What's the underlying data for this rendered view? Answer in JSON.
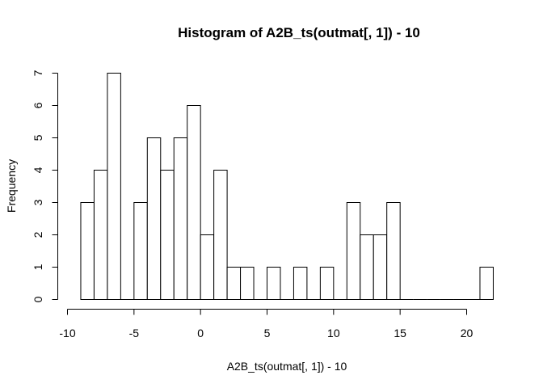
{
  "chart_data": {
    "type": "bar",
    "title": "Histogram of A2B_ts(outmat[, 1]) - 10",
    "xlabel": "A2B_ts(outmat[, 1]) - 10",
    "ylabel": "Frequency",
    "bin_width": 1,
    "bins": [
      {
        "x0": -9,
        "x1": -8,
        "count": 3
      },
      {
        "x0": -8,
        "x1": -7,
        "count": 4
      },
      {
        "x0": -7,
        "x1": -6,
        "count": 7
      },
      {
        "x0": -6,
        "x1": -5,
        "count": 0
      },
      {
        "x0": -5,
        "x1": -4,
        "count": 3
      },
      {
        "x0": -4,
        "x1": -3,
        "count": 5
      },
      {
        "x0": -3,
        "x1": -2,
        "count": 4
      },
      {
        "x0": -2,
        "x1": -1,
        "count": 5
      },
      {
        "x0": -1,
        "x1": 0,
        "count": 6
      },
      {
        "x0": 0,
        "x1": 1,
        "count": 2
      },
      {
        "x0": 1,
        "x1": 2,
        "count": 4
      },
      {
        "x0": 2,
        "x1": 3,
        "count": 1
      },
      {
        "x0": 3,
        "x1": 4,
        "count": 1
      },
      {
        "x0": 4,
        "x1": 5,
        "count": 0
      },
      {
        "x0": 5,
        "x1": 6,
        "count": 1
      },
      {
        "x0": 6,
        "x1": 7,
        "count": 0
      },
      {
        "x0": 7,
        "x1": 8,
        "count": 1
      },
      {
        "x0": 8,
        "x1": 9,
        "count": 0
      },
      {
        "x0": 9,
        "x1": 10,
        "count": 1
      },
      {
        "x0": 10,
        "x1": 11,
        "count": 0
      },
      {
        "x0": 11,
        "x1": 12,
        "count": 3
      },
      {
        "x0": 12,
        "x1": 13,
        "count": 2
      },
      {
        "x0": 13,
        "x1": 14,
        "count": 2
      },
      {
        "x0": 14,
        "x1": 15,
        "count": 3
      },
      {
        "x0": 15,
        "x1": 16,
        "count": 0
      },
      {
        "x0": 16,
        "x1": 17,
        "count": 0
      },
      {
        "x0": 17,
        "x1": 18,
        "count": 0
      },
      {
        "x0": 18,
        "x1": 19,
        "count": 0
      },
      {
        "x0": 19,
        "x1": 20,
        "count": 0
      },
      {
        "x0": 20,
        "x1": 21,
        "count": 0
      },
      {
        "x0": 21,
        "x1": 22,
        "count": 1
      }
    ],
    "xlim": [
      -10,
      22
    ],
    "ylim": [
      0,
      7
    ],
    "x_ticks": [
      -10,
      -5,
      0,
      5,
      10,
      15,
      20
    ],
    "x_tick_labels": [
      "-10",
      "-5",
      "0",
      "5",
      "10",
      "15",
      "20"
    ],
    "y_ticks": [
      0,
      1,
      2,
      3,
      4,
      5,
      6,
      7
    ],
    "y_tick_labels": [
      "0",
      "1",
      "2",
      "3",
      "4",
      "5",
      "6",
      "7"
    ],
    "grid": false,
    "legend": "none",
    "colors": {
      "bar_fill": "#ffffff",
      "bar_stroke": "#000000",
      "axis": "#000000"
    }
  }
}
